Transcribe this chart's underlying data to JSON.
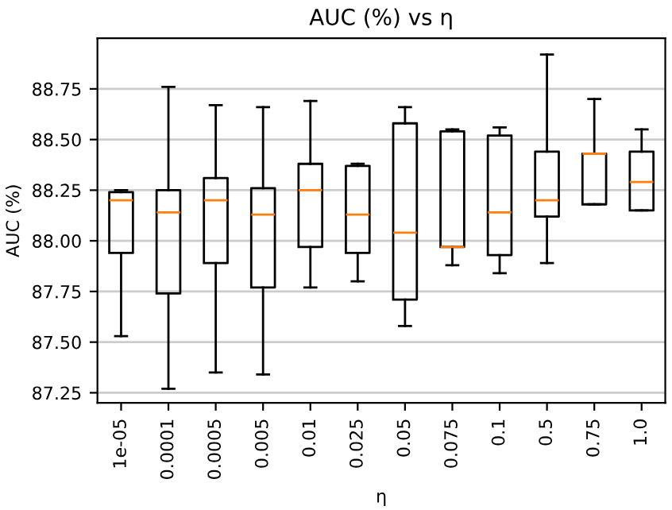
{
  "chart_data": {
    "type": "box",
    "title": "AUC (%) vs η",
    "xlabel": "η",
    "ylabel": "AUC (%)",
    "categories": [
      "1e-05",
      "0.0001",
      "0.0005",
      "0.005",
      "0.01",
      "0.025",
      "0.05",
      "0.075",
      "0.1",
      "0.5",
      "0.75",
      "1.0"
    ],
    "boxes": [
      {
        "low": 87.53,
        "q1": 87.94,
        "median": 88.2,
        "q3": 88.24,
        "high": 88.25
      },
      {
        "low": 87.27,
        "q1": 87.74,
        "median": 88.14,
        "q3": 88.25,
        "high": 88.76
      },
      {
        "low": 87.35,
        "q1": 87.89,
        "median": 88.2,
        "q3": 88.31,
        "high": 88.67
      },
      {
        "low": 87.34,
        "q1": 87.77,
        "median": 88.13,
        "q3": 88.26,
        "high": 88.66
      },
      {
        "low": 87.77,
        "q1": 87.97,
        "median": 88.25,
        "q3": 88.38,
        "high": 88.69
      },
      {
        "low": 87.8,
        "q1": 87.94,
        "median": 88.13,
        "q3": 88.37,
        "high": 88.38
      },
      {
        "low": 87.58,
        "q1": 87.71,
        "median": 88.04,
        "q3": 88.58,
        "high": 88.66
      },
      {
        "low": 87.88,
        "q1": 87.97,
        "median": 87.97,
        "q3": 88.54,
        "high": 88.55
      },
      {
        "low": 87.84,
        "q1": 87.93,
        "median": 88.14,
        "q3": 88.52,
        "high": 88.56
      },
      {
        "low": 87.89,
        "q1": 88.12,
        "median": 88.2,
        "q3": 88.44,
        "high": 88.92
      },
      {
        "low": 88.18,
        "q1": 88.18,
        "median": 88.43,
        "q3": 88.43,
        "high": 88.7
      },
      {
        "low": 88.15,
        "q1": 88.15,
        "median": 88.29,
        "q3": 88.44,
        "high": 88.55
      }
    ],
    "ylim": [
      87.2,
      89.0
    ],
    "yticks": [
      87.25,
      {
        "value": 87.5,
        "label": "87.50"
      },
      87.75,
      {
        "value": 88.0,
        "label": "88.00"
      },
      88.25,
      {
        "value": 88.5,
        "label": "88.50"
      },
      88.75
    ],
    "grid": "y"
  }
}
